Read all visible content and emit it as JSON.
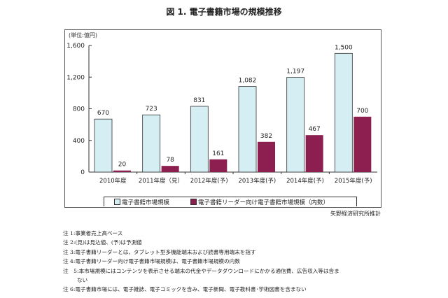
{
  "chart_data": {
    "type": "bar",
    "title": "図 1. 電子書籍市場の規模推移",
    "unit_label": "(単位:億円)",
    "categories": [
      "2010年度",
      "2011年度（見）",
      "2012年度(予)",
      "2013年度(予)",
      "2014年度(予)",
      "2015年度(予)"
    ],
    "series": [
      {
        "name": "電子書籍市場規模",
        "values": [
          670,
          723,
          831,
          1082,
          1197,
          1500
        ],
        "labels": [
          "670",
          "723",
          "831",
          "1,082",
          "1,197",
          "1,500"
        ],
        "color": "#d4eef3"
      },
      {
        "name": "電子書籍リーダー向け電子書籍市場規模（内数）",
        "values": [
          20,
          78,
          161,
          382,
          467,
          700
        ],
        "labels": [
          "20",
          "78",
          "161",
          "382",
          "467",
          "700"
        ],
        "color": "#8c1f4f"
      }
    ],
    "ylim": [
      0,
      1600
    ],
    "yticks": [
      0,
      400,
      800,
      1200,
      1600
    ],
    "ytick_labels": [
      "0",
      "400",
      "800",
      "1,200",
      "1,600"
    ],
    "legend_position": "bottom",
    "grid": false
  },
  "source": "矢野経済研究所推計",
  "notes": [
    "注 1:事業者売上高ベース",
    "注 2:(見)は見込値、(予)は予測値",
    "注 3:電子書籍リーダーとは、タブレット型多機能端末および読書専用端末を指す",
    "注 4:電子書籍リーダー向け電子書籍市場規模は、電子書籍市場規模の内数",
    "注　5:本市場規模にはコンテンツを表示させる端末の代金やデータダウンロードにかかる通信費、広告収入等は含ま",
    "ない",
    "注 6:電子書籍市場には、電子雑誌、電子コミックを含み、電子新聞、電子教科書･学術図書を含まない"
  ]
}
